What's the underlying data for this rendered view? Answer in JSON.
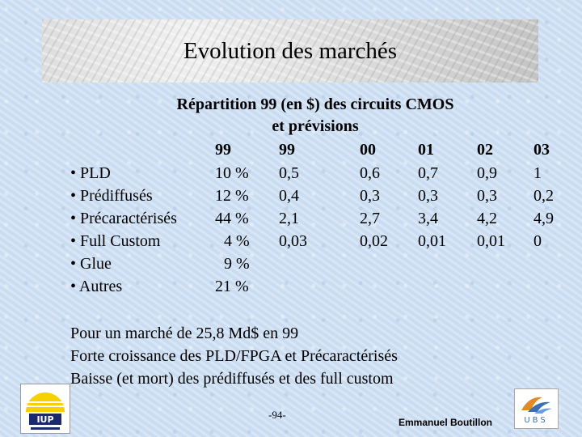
{
  "title": "Evolution des marchés",
  "subtitle_line1": "Répartition 99 (en $) des circuits CMOS",
  "subtitle_line2": "et prévisions",
  "table": {
    "headers": [
      "99",
      "99",
      "00",
      "01",
      "02",
      "03"
    ],
    "rows": [
      {
        "label": "• PLD",
        "share": "10 %",
        "values": [
          "0,5",
          "0,6",
          "0,7",
          "0,9",
          "1"
        ]
      },
      {
        "label": "• Prédiffusés",
        "share": "12 %",
        "values": [
          "0,4",
          "0,3",
          "0,3",
          "0,3",
          "0,2"
        ]
      },
      {
        "label": "• Précaractérisés",
        "share": "44 %",
        "values": [
          "2,1",
          "2,7",
          "3,4",
          "4,2",
          "4,9"
        ]
      },
      {
        "label": "• Full Custom",
        "share": "4 %",
        "values": [
          "0,03",
          "0,02",
          "0,01",
          "0,01",
          "0"
        ]
      },
      {
        "label": "• Glue",
        "share": "9 %",
        "values": []
      },
      {
        "label": "• Autres",
        "share": "21 %",
        "values": []
      }
    ]
  },
  "footer_lines": [
    "Pour un marché de 25,8 Md$ en 99",
    "Forte croissance des PLD/FPGA et Précaractérisés",
    "Baisse (et mort) des prédiffusés et des full custom"
  ],
  "page_number": "-94-",
  "author": "Emmanuel Boutillon",
  "logos": {
    "left": {
      "text": "IUP",
      "icon": "iup-logo-icon"
    },
    "right": {
      "text": "UBS",
      "icon": "ubs-logo-icon"
    }
  }
}
